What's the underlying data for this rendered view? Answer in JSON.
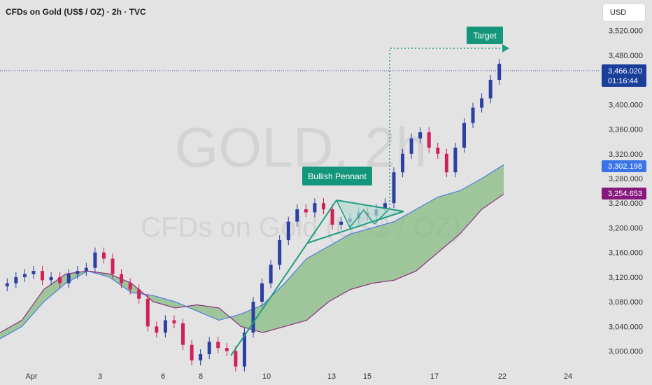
{
  "header": {
    "title": "CFDs on Gold (US$ / OZ) · 2h · TVC",
    "currency_button": "USD"
  },
  "watermark": {
    "line1": "GOLD, 2h",
    "line2": "CFDs on Gold (US$ / OZ)"
  },
  "price_axis": {
    "ticks": [
      "3,520.000",
      "3,480.000",
      "3,400.000",
      "3,360.000",
      "3,320.000",
      "3,280.000",
      "3,240.000",
      "3,200.000",
      "3,160.000",
      "3,120.000",
      "3,080.000",
      "3,040.000",
      "3,000.000"
    ]
  },
  "time_axis": {
    "ticks": [
      "Apr",
      "3",
      "6",
      "8",
      "10",
      "13",
      "15",
      "17",
      "22",
      "24"
    ]
  },
  "price_badges": {
    "last_price": "3,466.020",
    "countdown": "01:16:44",
    "cloud_top": "3,302.198",
    "cloud_bottom": "3,254.653"
  },
  "annotations": {
    "pattern": "Bullish Pennant",
    "target": "Target"
  },
  "colors": {
    "bull": "#2c3fa3",
    "bear": "#d0205a",
    "cloud": "#7bb574",
    "span_a": "#4d7de0",
    "span_b": "#8a2d7c",
    "pattern_line": "#1f9d81",
    "label_bg": "#14967a",
    "badge_last": "#1b3e9b",
    "badge_cloud_top": "#3a74e6",
    "badge_cloud_bottom": "#88187e"
  },
  "chart_data": {
    "type": "candlestick",
    "title": "CFDs on Gold (US$ / OZ) · 2h · TVC",
    "ylim": [
      2970,
      3540
    ],
    "x_ticks": [
      "Apr",
      "3",
      "6",
      "8",
      "10",
      "13",
      "15",
      "17",
      "22",
      "24"
    ],
    "series": [
      {
        "name": "price",
        "approx_closes": [
          3110,
          3120,
          3125,
          3130,
          3115,
          3120,
          3110,
          3125,
          3130,
          3135,
          3160,
          3150,
          3125,
          3110,
          3100,
          3085,
          3040,
          3030,
          3050,
          3045,
          3010,
          2985,
          2995,
          3015,
          3005,
          3000,
          2975,
          3030,
          3080,
          3110,
          3140,
          3180,
          3210,
          3230,
          3225,
          3240,
          3230,
          3205,
          3210,
          3215,
          3225,
          3220,
          3230,
          3240,
          3290,
          3320,
          3345,
          3355,
          3330,
          3320,
          3290,
          3330,
          3370,
          3395,
          3410,
          3440,
          3466.02
        ]
      },
      {
        "name": "cloud_top",
        "approx_values": [
          3020,
          3040,
          3080,
          3110,
          3130,
          3120,
          3095,
          3090,
          3080,
          3065,
          3050,
          3060,
          3075,
          3110,
          3150,
          3170,
          3190,
          3200,
          3210,
          3230,
          3250,
          3260,
          3280,
          3302.198
        ]
      },
      {
        "name": "cloud_bottom",
        "approx_values": [
          3030,
          3050,
          3100,
          3125,
          3130,
          3125,
          3110,
          3080,
          3070,
          3075,
          3070,
          3040,
          3030,
          3040,
          3050,
          3080,
          3100,
          3110,
          3115,
          3130,
          3160,
          3190,
          3230,
          3254.653
        ]
      }
    ],
    "levels": {
      "last_price": 3466.02,
      "target": 3510
    }
  }
}
